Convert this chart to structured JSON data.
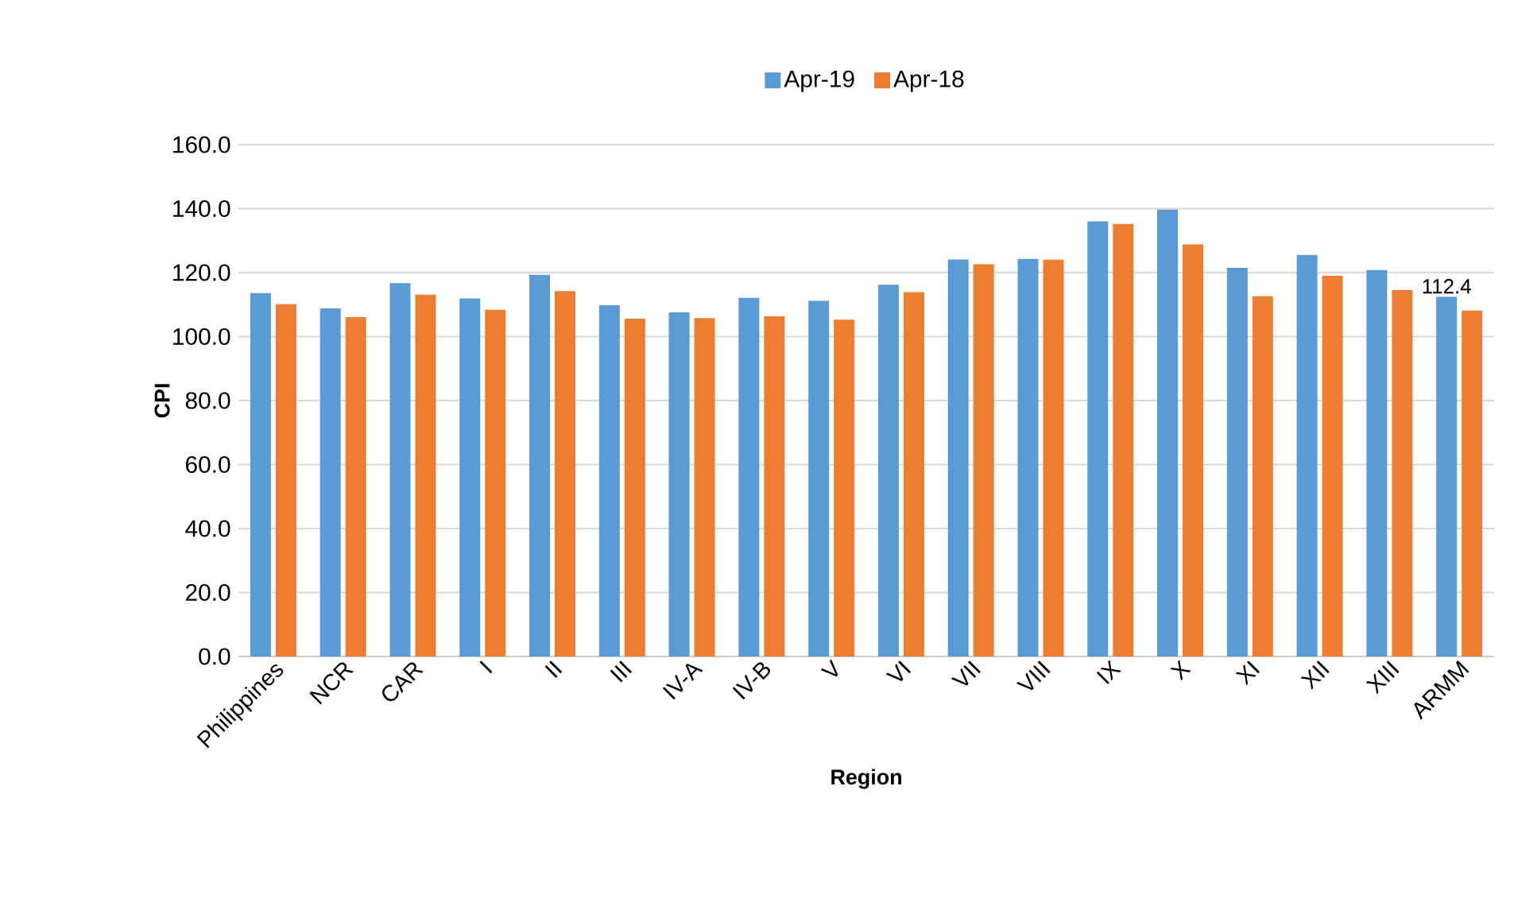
{
  "chart_data": {
    "type": "bar",
    "xlabel": "Region",
    "ylabel": "CPI",
    "categories": [
      "Philippines",
      "NCR",
      "CAR",
      "I",
      "II",
      "III",
      "IV-A",
      "IV-B",
      "V",
      "VI",
      "VII",
      "VIII",
      "IX",
      "X",
      "XI",
      "XII",
      "XIII",
      "ARMM"
    ],
    "series": [
      {
        "name": "Apr-19",
        "color": "#5b9bd5",
        "values": [
          113.6,
          108.8,
          116.7,
          111.9,
          119.3,
          109.8,
          107.6,
          112.1,
          111.2,
          116.2,
          124.1,
          124.3,
          136.0,
          139.7,
          121.5,
          125.5,
          120.8,
          112.4
        ],
        "value_labels": [
          null,
          null,
          null,
          null,
          null,
          null,
          null,
          null,
          null,
          null,
          null,
          null,
          null,
          null,
          null,
          null,
          null,
          "112.4"
        ]
      },
      {
        "name": "Apr-18",
        "color": "#ed7d31",
        "values": [
          110.1,
          106.1,
          113.1,
          108.4,
          114.2,
          105.6,
          105.8,
          106.3,
          105.3,
          113.9,
          122.6,
          124.0,
          135.2,
          128.8,
          112.6,
          119.0,
          114.5,
          108.1
        ]
      }
    ],
    "ylim": [
      0,
      160
    ],
    "yticks": [
      {
        "value": 0,
        "label": "0.0"
      },
      {
        "value": 20,
        "label": "20.0"
      },
      {
        "value": 40,
        "label": "40.0"
      },
      {
        "value": 60,
        "label": "60.0"
      },
      {
        "value": 80,
        "label": "80.0"
      },
      {
        "value": 100,
        "label": "100.0"
      },
      {
        "value": 120,
        "label": "120.0"
      },
      {
        "value": 140,
        "label": "140.0"
      },
      {
        "value": 160,
        "label": "160.0"
      }
    ],
    "grid": "y",
    "legend": "top"
  }
}
